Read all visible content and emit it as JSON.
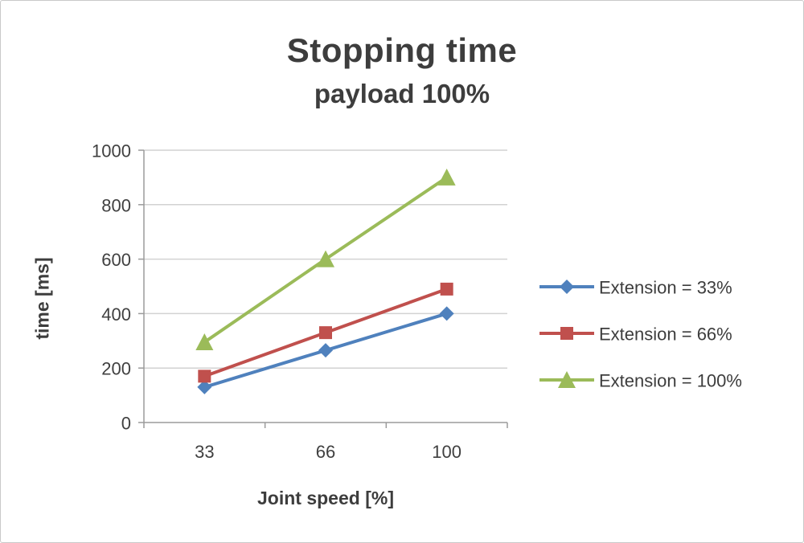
{
  "chart_data": {
    "type": "line",
    "title": "Stopping time",
    "subtitle": "payload 100%",
    "xlabel": "Joint speed [%]",
    "ylabel": "time [ms]",
    "categories": [
      "33",
      "66",
      "100"
    ],
    "series": [
      {
        "name": "Extension = 33%",
        "values": [
          130,
          265,
          400
        ],
        "color": "#4F81BD",
        "marker": "diamond"
      },
      {
        "name": "Extension = 66%",
        "values": [
          170,
          330,
          490
        ],
        "color": "#C0504D",
        "marker": "square"
      },
      {
        "name": "Extension = 100%",
        "values": [
          295,
          600,
          900
        ],
        "color": "#9BBB59",
        "marker": "triangle"
      }
    ],
    "ylim": [
      0,
      1000
    ],
    "ytick_step": 200,
    "grid": true,
    "legend_position": "right",
    "axis_color": "#9b9b9b",
    "gridline_color": "#d2d2d2"
  }
}
